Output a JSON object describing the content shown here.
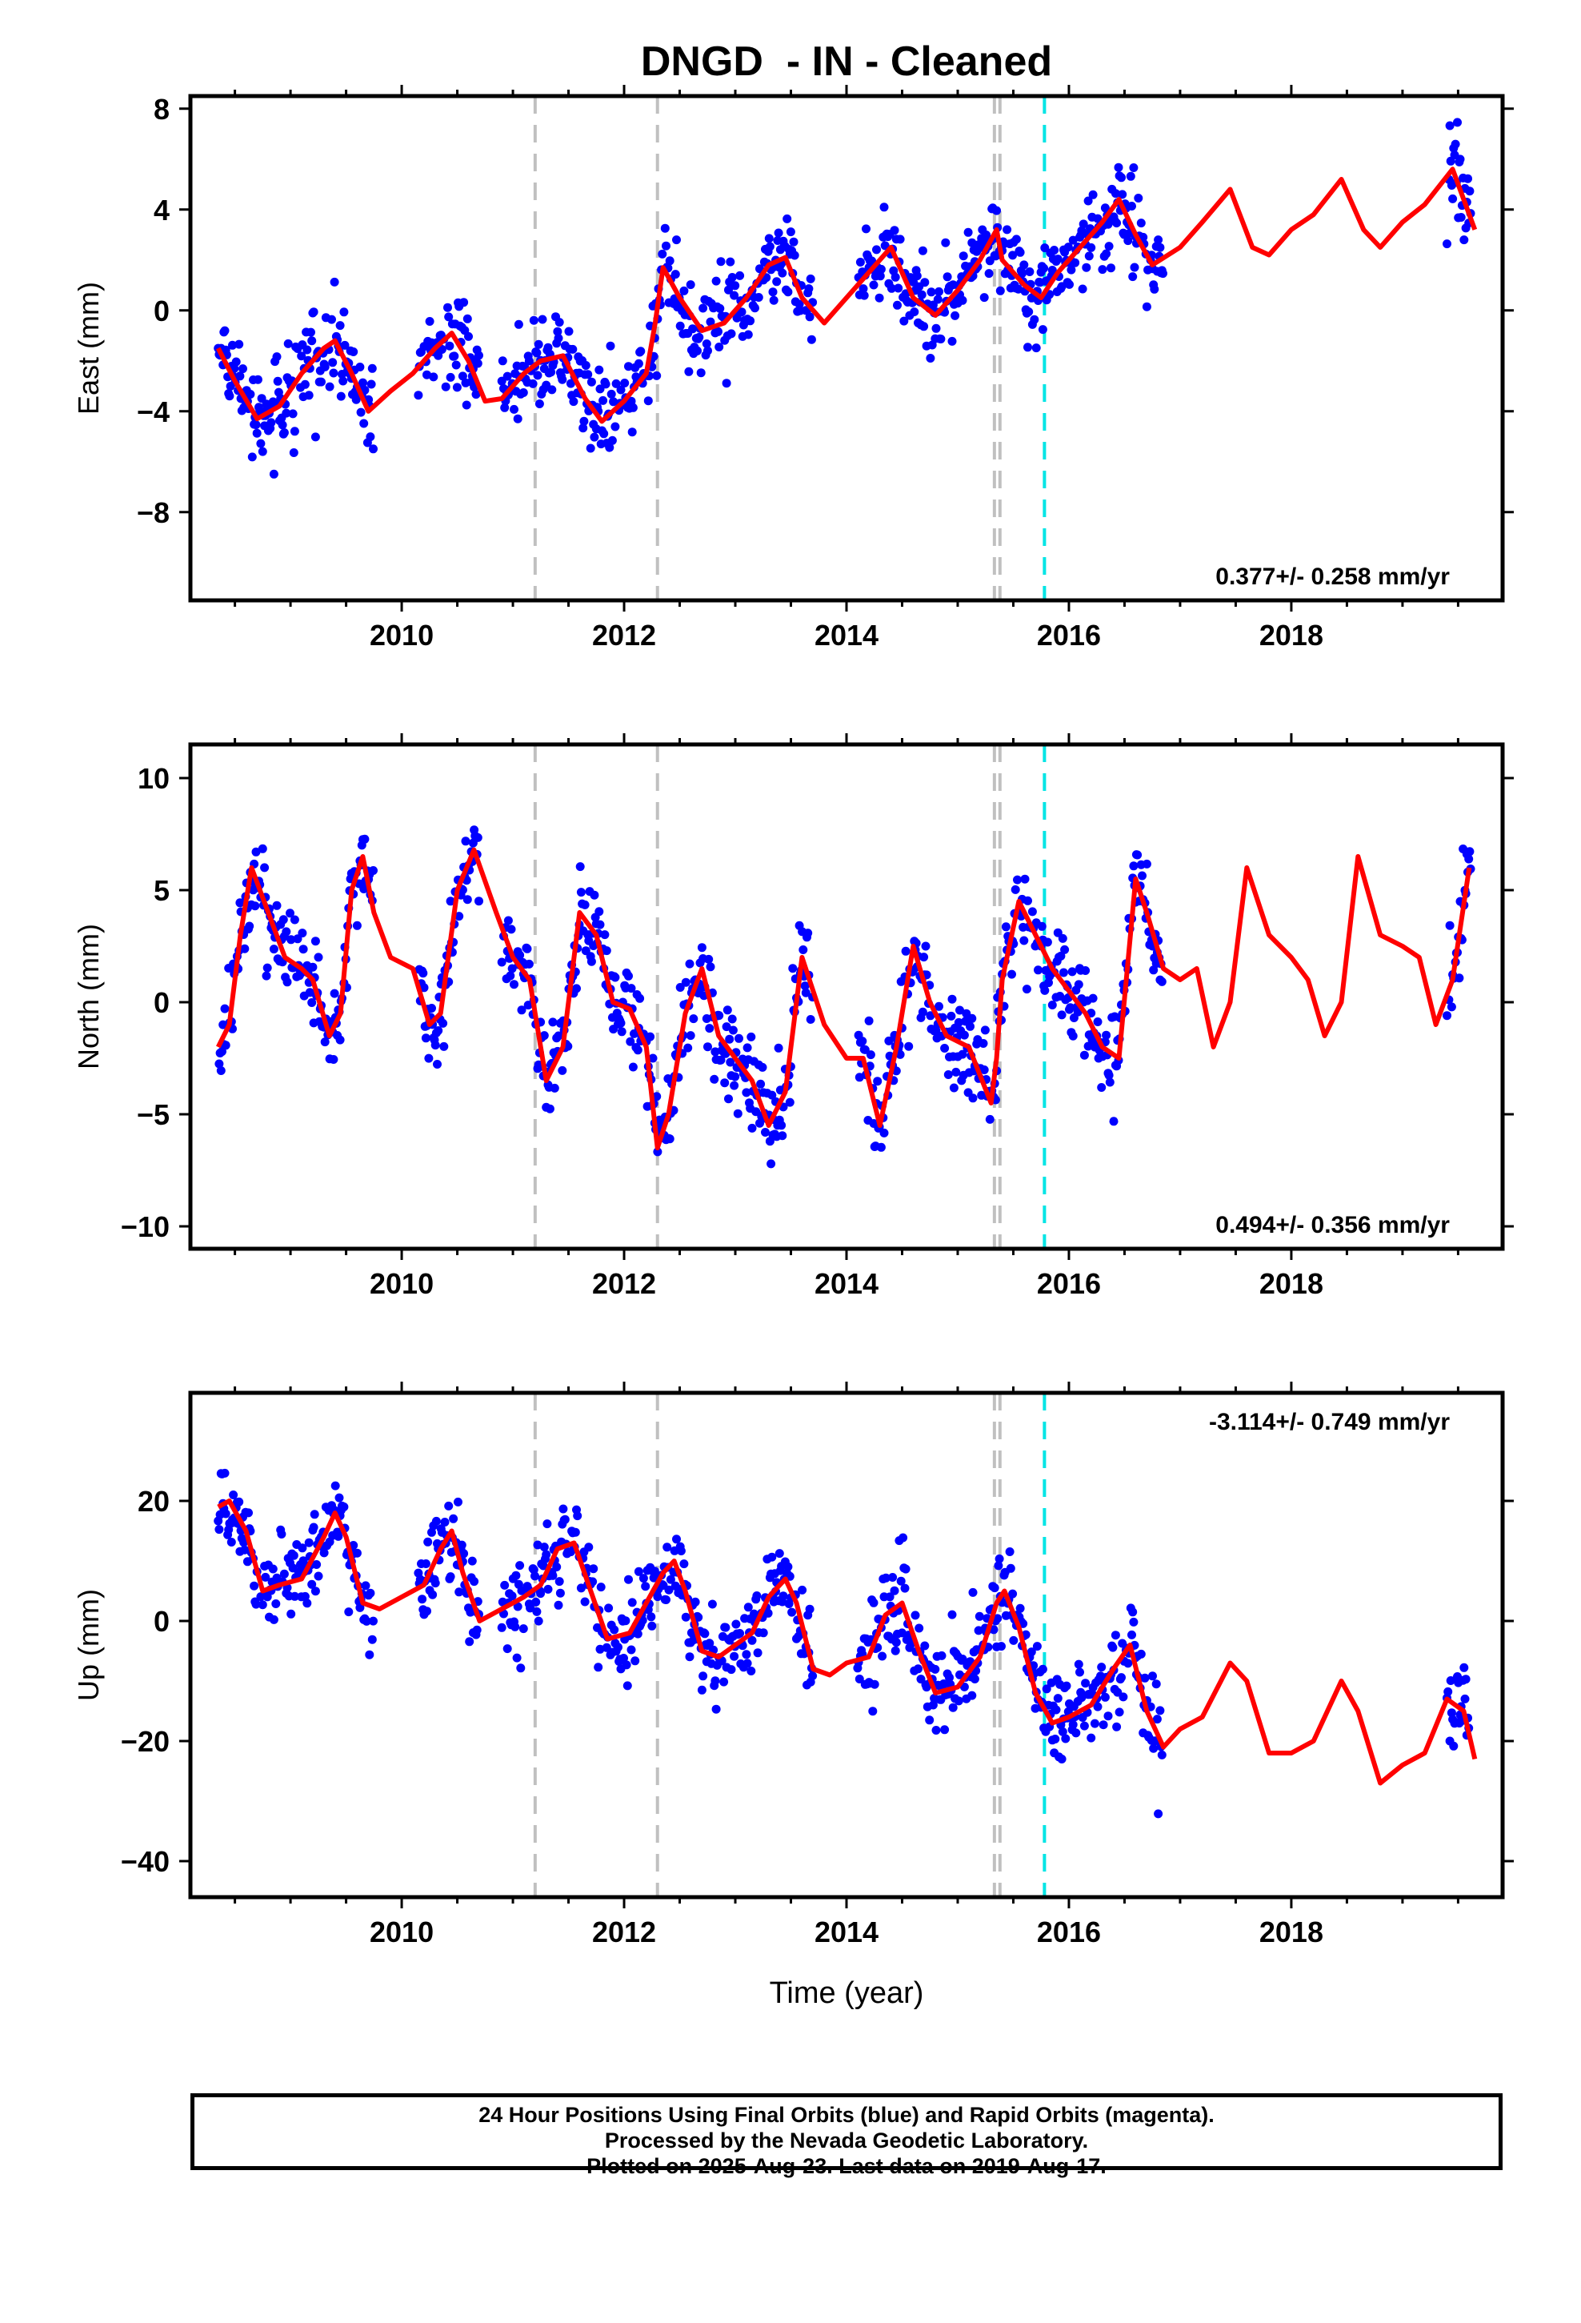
{
  "title": "DNGD  - IN - Cleaned",
  "footer": {
    "line1": "24 Hour Positions Using Final Orbits (blue) and Rapid Orbits (magenta).",
    "line2": "Processed by the Nevada Geodetic Laboratory.",
    "line3": "Plotted on 2025-Aug-23. Last data on 2019-Aug-17."
  },
  "colors": {
    "data": "#0000ff",
    "model": "#ff0000",
    "step_gray": "#c0c0c0",
    "step_cyan": "#00e5e5"
  },
  "chart_data": [
    {
      "type": "scatter",
      "panel": "east",
      "ylabel": "East (mm)",
      "xlim": [
        2008.1,
        2019.9
      ],
      "ylim": [
        -11.5,
        8.5
      ],
      "yticks": [
        8,
        4,
        0,
        -4,
        -8
      ],
      "xticks": [
        2010,
        2012,
        2014,
        2016,
        2018
      ],
      "rate_text": "0.377+/- 0.258 mm/yr",
      "rate_position": "bottom-right",
      "vlines_gray": [
        2011.2,
        2012.3,
        2015.33,
        2015.38
      ],
      "vlines_cyan": [
        2015.78
      ],
      "data_segments": [
        [
          2008.35,
          2009.75
        ],
        [
          2010.15,
          2010.7
        ],
        [
          2010.9,
          2012.25
        ],
        [
          2012.25,
          2013.7
        ],
        [
          2014.1,
          2016.85
        ],
        [
          2019.4,
          2019.62
        ]
      ],
      "model": {
        "x": [
          2008.35,
          2008.5,
          2008.7,
          2008.9,
          2009.1,
          2009.3,
          2009.4,
          2009.55,
          2009.7,
          2009.9,
          2010.1,
          2010.3,
          2010.45,
          2010.6,
          2010.75,
          2010.9,
          2011.1,
          2011.25,
          2011.45,
          2011.65,
          2011.8,
          2012.0,
          2012.2,
          2012.28,
          2012.35,
          2012.5,
          2012.7,
          2012.9,
          2013.1,
          2013.3,
          2013.45,
          2013.6,
          2013.8,
          2014.0,
          2014.2,
          2014.4,
          2014.6,
          2014.8,
          2015.0,
          2015.2,
          2015.35,
          2015.4,
          2015.6,
          2015.75,
          2015.9,
          2016.1,
          2016.3,
          2016.45,
          2016.6,
          2016.75,
          2017.0,
          2017.2,
          2017.45,
          2017.65,
          2017.8,
          2018.0,
          2018.2,
          2018.45,
          2018.65,
          2018.8,
          2019.0,
          2019.2,
          2019.45,
          2019.65
        ],
        "y": [
          -1.5,
          -2.8,
          -4.3,
          -3.8,
          -2.5,
          -1.5,
          -1.2,
          -2.5,
          -4.0,
          -3.2,
          -2.5,
          -1.5,
          -0.9,
          -2.0,
          -3.6,
          -3.5,
          -2.5,
          -2.0,
          -1.8,
          -3.5,
          -4.4,
          -3.6,
          -2.5,
          -0.5,
          1.7,
          0.5,
          -0.8,
          -0.5,
          0.5,
          1.8,
          2.1,
          0.5,
          -0.5,
          0.5,
          1.5,
          2.5,
          0.5,
          -0.2,
          0.8,
          2.0,
          3.2,
          2.0,
          1.0,
          0.5,
          1.5,
          2.5,
          3.5,
          4.4,
          3.0,
          1.8,
          2.5,
          3.5,
          4.8,
          2.5,
          2.2,
          3.2,
          3.8,
          5.2,
          3.2,
          2.5,
          3.5,
          4.2,
          5.6,
          3.2
        ]
      }
    },
    {
      "type": "scatter",
      "panel": "north",
      "ylabel": "North (mm)",
      "xlim": [
        2008.1,
        2019.9
      ],
      "ylim": [
        -11,
        11.5
      ],
      "yticks": [
        10,
        5,
        0,
        -5,
        -10
      ],
      "xticks": [
        2010,
        2012,
        2014,
        2016,
        2018
      ],
      "rate_text": "0.494+/- 0.356 mm/yr",
      "rate_position": "bottom-right",
      "vlines_gray": [
        2011.2,
        2012.3,
        2015.33,
        2015.38
      ],
      "vlines_cyan": [
        2015.78
      ],
      "data_segments": [
        [
          2008.35,
          2009.75
        ],
        [
          2010.15,
          2010.7
        ],
        [
          2010.9,
          2012.25
        ],
        [
          2012.25,
          2013.7
        ],
        [
          2014.1,
          2016.85
        ],
        [
          2019.4,
          2019.62
        ]
      ],
      "model": {
        "x": [
          2008.35,
          2008.45,
          2008.55,
          2008.65,
          2008.8,
          2008.95,
          2009.1,
          2009.2,
          2009.35,
          2009.45,
          2009.55,
          2009.65,
          2009.75,
          2009.9,
          2010.1,
          2010.25,
          2010.35,
          2010.5,
          2010.65,
          2010.85,
          2011.0,
          2011.15,
          2011.3,
          2011.45,
          2011.6,
          2011.75,
          2011.9,
          2012.05,
          2012.2,
          2012.3,
          2012.4,
          2012.55,
          2012.7,
          2012.85,
          2013.0,
          2013.15,
          2013.3,
          2013.45,
          2013.6,
          2013.8,
          2014.0,
          2014.15,
          2014.3,
          2014.45,
          2014.6,
          2014.75,
          2014.9,
          2015.1,
          2015.3,
          2015.35,
          2015.4,
          2015.55,
          2015.7,
          2015.85,
          2016.0,
          2016.15,
          2016.3,
          2016.45,
          2016.6,
          2016.7,
          2016.85,
          2017.0,
          2017.15,
          2017.3,
          2017.45,
          2017.6,
          2017.8,
          2018.0,
          2018.15,
          2018.3,
          2018.45,
          2018.6,
          2018.8,
          2019.0,
          2019.15,
          2019.3,
          2019.45,
          2019.6
        ],
        "y": [
          -2,
          -1,
          3,
          6,
          4,
          2,
          1.5,
          1,
          -1.5,
          -0.5,
          5,
          6.5,
          4,
          2,
          1.5,
          -1,
          -0.5,
          5,
          6.8,
          4,
          2,
          1,
          -3.5,
          -2,
          4,
          3,
          0,
          -0.3,
          -2,
          -6.5,
          -5,
          -0.5,
          1.5,
          -1.5,
          -2.5,
          -3.5,
          -5.5,
          -4,
          2,
          -1,
          -2.5,
          -2.5,
          -5.5,
          -2,
          2.5,
          0,
          -1.5,
          -2,
          -4.5,
          -2.5,
          1,
          4.5,
          3,
          1.5,
          0.5,
          -0.5,
          -2,
          -2.5,
          5.5,
          4,
          1.5,
          1,
          1.5,
          -2,
          0,
          6,
          3,
          2,
          1,
          -1.5,
          0,
          6.5,
          3,
          2.5,
          2,
          -1,
          1,
          6
        ]
      }
    },
    {
      "type": "scatter",
      "panel": "up",
      "ylabel": "Up (mm)",
      "xlabel": "Time (year)",
      "xlim": [
        2008.1,
        2019.9
      ],
      "ylim": [
        -46,
        38
      ],
      "yticks": [
        20,
        0,
        -20,
        -40
      ],
      "xticks": [
        2010,
        2012,
        2014,
        2016,
        2018
      ],
      "rate_text": "-3.114+/- 0.749 mm/yr",
      "rate_position": "top-right",
      "vlines_gray": [
        2011.2,
        2012.3,
        2015.33,
        2015.38
      ],
      "vlines_cyan": [
        2015.78
      ],
      "data_segments": [
        [
          2008.35,
          2009.75
        ],
        [
          2010.15,
          2010.7
        ],
        [
          2010.9,
          2012.25
        ],
        [
          2012.25,
          2013.7
        ],
        [
          2014.1,
          2016.85
        ],
        [
          2019.4,
          2019.62
        ]
      ],
      "model": {
        "x": [
          2008.35,
          2008.45,
          2008.6,
          2008.75,
          2008.9,
          2009.1,
          2009.3,
          2009.4,
          2009.5,
          2009.65,
          2009.8,
          2010.0,
          2010.2,
          2010.35,
          2010.45,
          2010.55,
          2010.7,
          2010.9,
          2011.1,
          2011.25,
          2011.4,
          2011.55,
          2011.7,
          2011.85,
          2012.05,
          2012.2,
          2012.35,
          2012.45,
          2012.55,
          2012.7,
          2012.85,
          2013.0,
          2013.15,
          2013.3,
          2013.45,
          2013.55,
          2013.7,
          2013.85,
          2014.0,
          2014.2,
          2014.35,
          2014.5,
          2014.65,
          2014.8,
          2015.0,
          2015.2,
          2015.35,
          2015.42,
          2015.55,
          2015.7,
          2015.85,
          2016.0,
          2016.2,
          2016.4,
          2016.55,
          2016.7,
          2016.85,
          2017.0,
          2017.2,
          2017.45,
          2017.6,
          2017.8,
          2018.0,
          2018.2,
          2018.45,
          2018.6,
          2018.8,
          2019.0,
          2019.2,
          2019.4,
          2019.55,
          2019.65
        ],
        "y": [
          19,
          20,
          15,
          5,
          6,
          7,
          14,
          18,
          14,
          3,
          2,
          4,
          6,
          12,
          15,
          8,
          0,
          2,
          4,
          6,
          12,
          13,
          5,
          -3,
          -2,
          3,
          8,
          10,
          5,
          -5,
          -6,
          -4,
          -2,
          4,
          7,
          3,
          -8,
          -9,
          -7,
          -6,
          1,
          3,
          -5,
          -12,
          -11,
          -6,
          3,
          5,
          -1,
          -12,
          -17,
          -16,
          -14,
          -8,
          -4,
          -15,
          -21,
          -18,
          -16,
          -7,
          -10,
          -22,
          -22,
          -20,
          -10,
          -15,
          -27,
          -24,
          -22,
          -13,
          -15,
          -23
        ]
      }
    }
  ]
}
